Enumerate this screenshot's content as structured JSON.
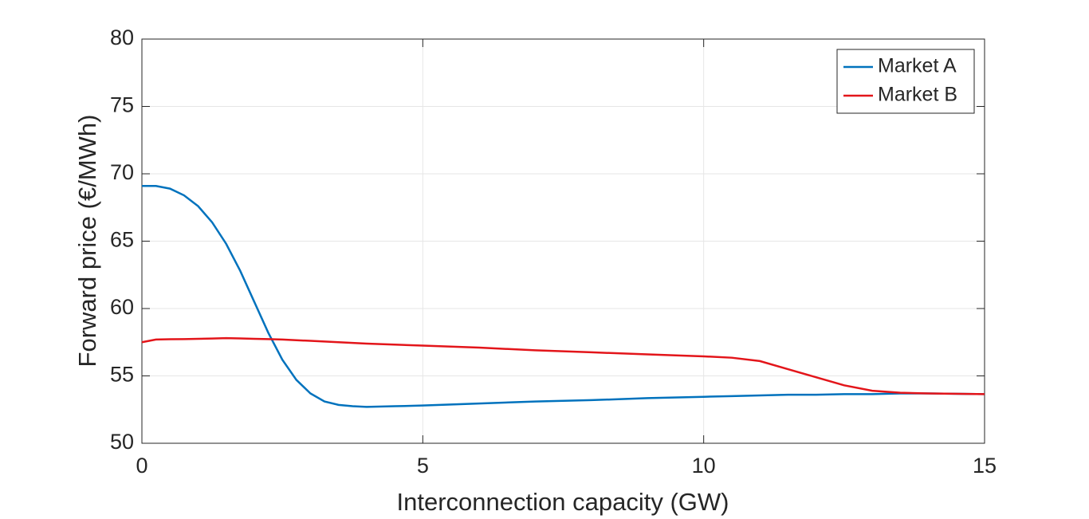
{
  "chart_data": {
    "type": "line",
    "x_label": "Interconnection capacity (GW)",
    "y_label": "Forward price (€/MWh)",
    "x": [
      0,
      0.25,
      0.5,
      0.75,
      1,
      1.25,
      1.5,
      1.75,
      2,
      2.25,
      2.5,
      2.75,
      3,
      3.25,
      3.5,
      3.75,
      4,
      4.5,
      5,
      6,
      7,
      8,
      9,
      10,
      10.5,
      11,
      11.5,
      12,
      12.5,
      13,
      13.5,
      14,
      15
    ],
    "series": [
      {
        "name": "Market A",
        "color": "#0072bd",
        "values": [
          69.1,
          69.1,
          68.9,
          68.4,
          67.6,
          66.4,
          64.8,
          62.8,
          60.5,
          58.2,
          56.2,
          54.7,
          53.7,
          53.1,
          52.85,
          52.75,
          52.7,
          52.75,
          52.8,
          52.95,
          53.1,
          53.2,
          53.35,
          53.45,
          53.5,
          53.55,
          53.6,
          53.6,
          53.65,
          53.65,
          53.7,
          53.7,
          53.65
        ]
      },
      {
        "name": "Market B",
        "color": "#e3151a",
        "values": [
          57.5,
          57.7,
          57.72,
          57.73,
          57.75,
          57.77,
          57.8,
          57.78,
          57.75,
          57.73,
          57.7,
          57.65,
          57.6,
          57.55,
          57.5,
          57.45,
          57.4,
          57.32,
          57.25,
          57.1,
          56.9,
          56.75,
          56.6,
          56.45,
          56.35,
          56.1,
          55.5,
          54.9,
          54.3,
          53.9,
          53.75,
          53.7,
          53.65
        ]
      }
    ],
    "xlim": [
      0,
      15
    ],
    "xticks": [
      0,
      5,
      10,
      15
    ],
    "ylim": [
      50,
      80
    ],
    "yticks": [
      50,
      55,
      60,
      65,
      70,
      75,
      80
    ],
    "grid": true,
    "legend": "upper right"
  }
}
